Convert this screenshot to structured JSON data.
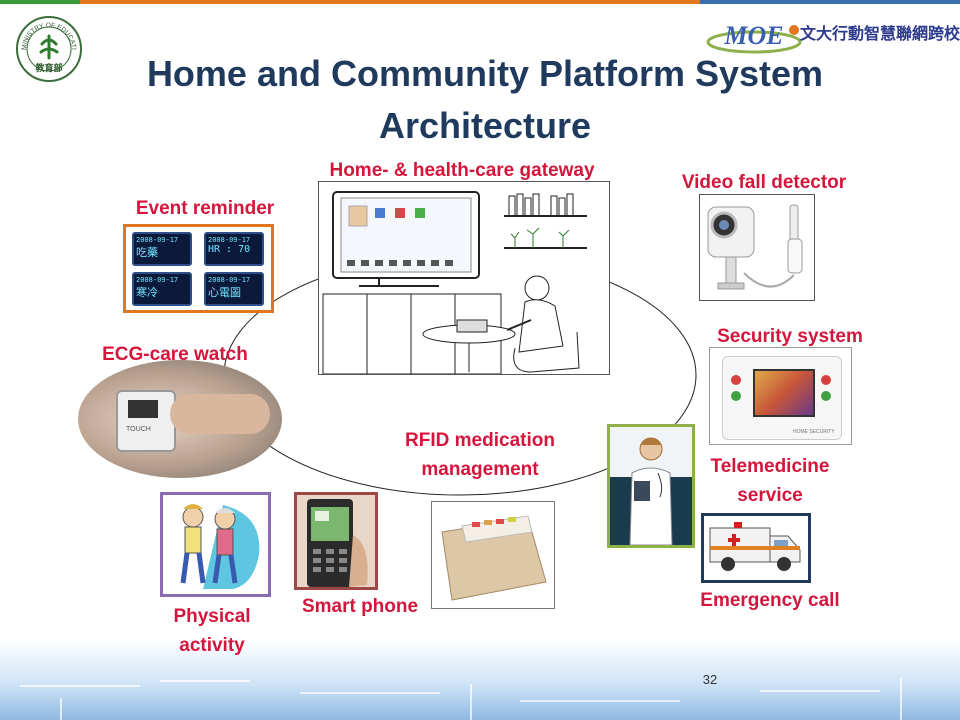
{
  "title": "Home and Community Platform System Architecture",
  "title_line1": "Home and Community Platform System",
  "title_line2": "Architecture",
  "logos": {
    "ministry_text": "MINISTRY OF EDUCATION",
    "ministry_chinese": "教育部",
    "moe_brand": "MOE",
    "alliance_name": "文大行動智慧聯網跨校聯盟"
  },
  "components": {
    "gateway": "Home- & health-care gateway",
    "event_reminder": "Event reminder",
    "video_fall_detector": "Video fall detector",
    "security_system": "Security system",
    "ecg_watch": "ECG-care watch",
    "rfid_line1": "RFID medication",
    "rfid_line2": "management",
    "telemedicine_line1": "Telemedicine",
    "telemedicine_line2": "service",
    "emergency_call": "Emergency call",
    "physical_line1": "Physical",
    "physical_line2": "activity",
    "smart_phone": "Smart phone"
  },
  "reminder_screens": {
    "date": "2008-09-17",
    "hr": "HR : 70",
    "text_1": "吃藥",
    "text_2": "寒冷",
    "text_3": "心電圖"
  },
  "watch_text": "TOUCH",
  "security_brand": "HOME SECURITY",
  "page_number": "32",
  "colors": {
    "title": "#1f3a5c",
    "label": "#d4163c",
    "event_border": "#e2761e",
    "telemedicine_border": "#8db04a",
    "physical_border": "#8a6bb0",
    "phone_border": "#a04848",
    "ambulance_border": "#1f3a5c"
  }
}
